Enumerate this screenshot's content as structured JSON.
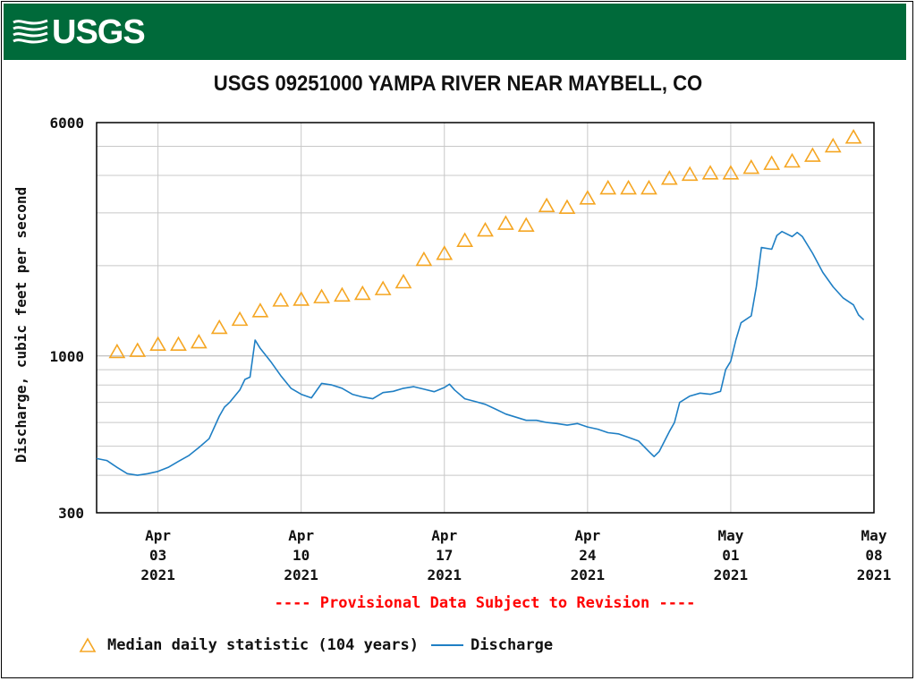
{
  "header": {
    "logo_text": "USGS",
    "title": "USGS 09251000 YAMPA RIVER NEAR MAYBELL, CO",
    "banner_color": "#006a3a"
  },
  "notice": "---- Provisional Data Subject to Revision ----",
  "legend": {
    "median_label": "Median daily statistic (104 years)",
    "discharge_label": "Discharge"
  },
  "chart_data": {
    "type": "line",
    "title": "USGS 09251000 YAMPA RIVER NEAR MAYBELL, CO",
    "ylabel": "Discharge, cubic feet per second",
    "xlabel": "",
    "yscale": "log",
    "ylim": [
      300,
      6000
    ],
    "xlim": [
      "2021-03-31",
      "2021-05-08"
    ],
    "grid": true,
    "legend_position": "bottom",
    "y_ticks": [
      "300",
      "1000",
      "6000"
    ],
    "x_ticks": [
      {
        "date": "2021-04-03",
        "lines": [
          "Apr",
          "03",
          "2021"
        ]
      },
      {
        "date": "2021-04-10",
        "lines": [
          "Apr",
          "10",
          "2021"
        ]
      },
      {
        "date": "2021-04-17",
        "lines": [
          "Apr",
          "17",
          "2021"
        ]
      },
      {
        "date": "2021-04-24",
        "lines": [
          "Apr",
          "24",
          "2021"
        ]
      },
      {
        "date": "2021-05-01",
        "lines": [
          "May",
          "01",
          "2021"
        ]
      },
      {
        "date": "2021-05-08",
        "lines": [
          "May",
          "08",
          "2021"
        ]
      }
    ],
    "colors": {
      "median": "#f5a623",
      "discharge": "#1f7fc4",
      "provisional": "#ff0000"
    },
    "series": [
      {
        "name": "Median daily statistic (104 years)",
        "style": "triangle-markers",
        "points": [
          [
            "2021-04-01",
            1030
          ],
          [
            "2021-04-02",
            1040
          ],
          [
            "2021-04-03",
            1090
          ],
          [
            "2021-04-04",
            1090
          ],
          [
            "2021-04-05",
            1110
          ],
          [
            "2021-04-06",
            1240
          ],
          [
            "2021-04-07",
            1320
          ],
          [
            "2021-04-08",
            1410
          ],
          [
            "2021-04-09",
            1530
          ],
          [
            "2021-04-10",
            1540
          ],
          [
            "2021-04-11",
            1570
          ],
          [
            "2021-04-12",
            1590
          ],
          [
            "2021-04-13",
            1610
          ],
          [
            "2021-04-14",
            1670
          ],
          [
            "2021-04-15",
            1760
          ],
          [
            "2021-04-16",
            2090
          ],
          [
            "2021-04-17",
            2190
          ],
          [
            "2021-04-18",
            2420
          ],
          [
            "2021-04-19",
            2620
          ],
          [
            "2021-04-20",
            2760
          ],
          [
            "2021-04-21",
            2720
          ],
          [
            "2021-04-22",
            3160
          ],
          [
            "2021-04-23",
            3120
          ],
          [
            "2021-04-24",
            3350
          ],
          [
            "2021-04-25",
            3620
          ],
          [
            "2021-04-26",
            3620
          ],
          [
            "2021-04-27",
            3620
          ],
          [
            "2021-04-28",
            3900
          ],
          [
            "2021-04-29",
            4020
          ],
          [
            "2021-04-30",
            4060
          ],
          [
            "2021-05-01",
            4060
          ],
          [
            "2021-05-02",
            4240
          ],
          [
            "2021-05-03",
            4370
          ],
          [
            "2021-05-04",
            4450
          ],
          [
            "2021-05-05",
            4650
          ],
          [
            "2021-05-06",
            5000
          ],
          [
            "2021-05-07",
            5350
          ]
        ]
      },
      {
        "name": "Discharge",
        "style": "line",
        "points": [
          [
            "2021-03-31T00:00",
            455
          ],
          [
            "2021-03-31T12:00",
            448
          ],
          [
            "2021-04-01T00:00",
            425
          ],
          [
            "2021-04-01T12:00",
            405
          ],
          [
            "2021-04-02T00:00",
            400
          ],
          [
            "2021-04-02T12:00",
            405
          ],
          [
            "2021-04-03T00:00",
            412
          ],
          [
            "2021-04-03T12:00",
            425
          ],
          [
            "2021-04-04T00:00",
            445
          ],
          [
            "2021-04-04T12:00",
            465
          ],
          [
            "2021-04-05T00:00",
            495
          ],
          [
            "2021-04-05T12:00",
            530
          ],
          [
            "2021-04-06T00:00",
            630
          ],
          [
            "2021-04-06T06:00",
            675
          ],
          [
            "2021-04-06T12:00",
            700
          ],
          [
            "2021-04-07T00:00",
            770
          ],
          [
            "2021-04-07T06:00",
            835
          ],
          [
            "2021-04-07T12:00",
            850
          ],
          [
            "2021-04-07T18:00",
            1130
          ],
          [
            "2021-04-08T00:00",
            1060
          ],
          [
            "2021-04-08T12:00",
            960
          ],
          [
            "2021-04-09T00:00",
            860
          ],
          [
            "2021-04-09T12:00",
            780
          ],
          [
            "2021-04-10T00:00",
            745
          ],
          [
            "2021-04-10T12:00",
            725
          ],
          [
            "2021-04-11T00:00",
            810
          ],
          [
            "2021-04-11T12:00",
            800
          ],
          [
            "2021-04-12T00:00",
            780
          ],
          [
            "2021-04-12T12:00",
            745
          ],
          [
            "2021-04-13T00:00",
            730
          ],
          [
            "2021-04-13T12:00",
            720
          ],
          [
            "2021-04-14T00:00",
            755
          ],
          [
            "2021-04-14T12:00",
            762
          ],
          [
            "2021-04-15T00:00",
            780
          ],
          [
            "2021-04-15T12:00",
            790
          ],
          [
            "2021-04-16T00:00",
            775
          ],
          [
            "2021-04-16T12:00",
            760
          ],
          [
            "2021-04-17T00:00",
            785
          ],
          [
            "2021-04-17T06:00",
            805
          ],
          [
            "2021-04-17T12:00",
            770
          ],
          [
            "2021-04-18T00:00",
            720
          ],
          [
            "2021-04-18T12:00",
            705
          ],
          [
            "2021-04-19T00:00",
            690
          ],
          [
            "2021-04-19T12:00",
            665
          ],
          [
            "2021-04-20T00:00",
            640
          ],
          [
            "2021-04-20T12:00",
            625
          ],
          [
            "2021-04-21T00:00",
            610
          ],
          [
            "2021-04-21T12:00",
            610
          ],
          [
            "2021-04-22T00:00",
            600
          ],
          [
            "2021-04-22T12:00",
            595
          ],
          [
            "2021-04-23T00:00",
            588
          ],
          [
            "2021-04-23T12:00",
            595
          ],
          [
            "2021-04-24T00:00",
            580
          ],
          [
            "2021-04-24T12:00",
            570
          ],
          [
            "2021-04-25T00:00",
            555
          ],
          [
            "2021-04-25T12:00",
            550
          ],
          [
            "2021-04-26T00:00",
            535
          ],
          [
            "2021-04-26T12:00",
            520
          ],
          [
            "2021-04-27T00:00",
            480
          ],
          [
            "2021-04-27T06:00",
            462
          ],
          [
            "2021-04-27T12:00",
            480
          ],
          [
            "2021-04-28T00:00",
            560
          ],
          [
            "2021-04-28T06:00",
            600
          ],
          [
            "2021-04-28T12:00",
            700
          ],
          [
            "2021-04-29T00:00",
            735
          ],
          [
            "2021-04-29T12:00",
            752
          ],
          [
            "2021-04-30T00:00",
            745
          ],
          [
            "2021-04-30T12:00",
            762
          ],
          [
            "2021-04-30T18:00",
            900
          ],
          [
            "2021-05-01T00:00",
            960
          ],
          [
            "2021-05-01T06:00",
            1130
          ],
          [
            "2021-05-01T12:00",
            1290
          ],
          [
            "2021-05-02T00:00",
            1360
          ],
          [
            "2021-05-02T06:00",
            1700
          ],
          [
            "2021-05-02T12:00",
            2300
          ],
          [
            "2021-05-03T00:00",
            2270
          ],
          [
            "2021-05-03T06:00",
            2520
          ],
          [
            "2021-05-03T12:00",
            2600
          ],
          [
            "2021-05-04T00:00",
            2500
          ],
          [
            "2021-05-04T06:00",
            2580
          ],
          [
            "2021-05-04T12:00",
            2500
          ],
          [
            "2021-05-05T00:00",
            2200
          ],
          [
            "2021-05-05T12:00",
            1900
          ],
          [
            "2021-05-06T00:00",
            1700
          ],
          [
            "2021-05-06T12:00",
            1560
          ],
          [
            "2021-05-07T00:00",
            1480
          ],
          [
            "2021-05-07T06:00",
            1370
          ],
          [
            "2021-05-07T12:00",
            1320
          ]
        ]
      }
    ]
  }
}
